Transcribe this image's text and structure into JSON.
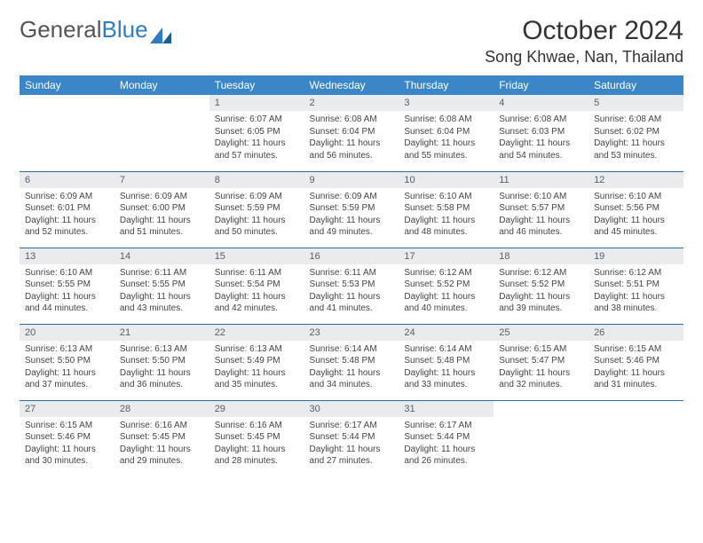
{
  "brand": {
    "name_a": "General",
    "name_b": "Blue"
  },
  "title": "October 2024",
  "location": "Song Khwae, Nan, Thailand",
  "colors": {
    "header_bg": "#3b86c6",
    "header_text": "#ffffff",
    "daynum_bg": "#e9ebec",
    "daynum_text": "#56606b",
    "body_text": "#444444",
    "rule": "#2f6aa0",
    "logo_blue": "#2f7cc0"
  },
  "weekdays": [
    "Sunday",
    "Monday",
    "Tuesday",
    "Wednesday",
    "Thursday",
    "Friday",
    "Saturday"
  ],
  "weeks": [
    [
      {
        "n": "",
        "empty": true
      },
      {
        "n": "",
        "empty": true
      },
      {
        "n": "1",
        "sr": "6:07 AM",
        "ss": "6:05 PM",
        "dl": "11 hours and 57 minutes."
      },
      {
        "n": "2",
        "sr": "6:08 AM",
        "ss": "6:04 PM",
        "dl": "11 hours and 56 minutes."
      },
      {
        "n": "3",
        "sr": "6:08 AM",
        "ss": "6:04 PM",
        "dl": "11 hours and 55 minutes."
      },
      {
        "n": "4",
        "sr": "6:08 AM",
        "ss": "6:03 PM",
        "dl": "11 hours and 54 minutes."
      },
      {
        "n": "5",
        "sr": "6:08 AM",
        "ss": "6:02 PM",
        "dl": "11 hours and 53 minutes."
      }
    ],
    [
      {
        "n": "6",
        "sr": "6:09 AM",
        "ss": "6:01 PM",
        "dl": "11 hours and 52 minutes."
      },
      {
        "n": "7",
        "sr": "6:09 AM",
        "ss": "6:00 PM",
        "dl": "11 hours and 51 minutes."
      },
      {
        "n": "8",
        "sr": "6:09 AM",
        "ss": "5:59 PM",
        "dl": "11 hours and 50 minutes."
      },
      {
        "n": "9",
        "sr": "6:09 AM",
        "ss": "5:59 PM",
        "dl": "11 hours and 49 minutes."
      },
      {
        "n": "10",
        "sr": "6:10 AM",
        "ss": "5:58 PM",
        "dl": "11 hours and 48 minutes."
      },
      {
        "n": "11",
        "sr": "6:10 AM",
        "ss": "5:57 PM",
        "dl": "11 hours and 46 minutes."
      },
      {
        "n": "12",
        "sr": "6:10 AM",
        "ss": "5:56 PM",
        "dl": "11 hours and 45 minutes."
      }
    ],
    [
      {
        "n": "13",
        "sr": "6:10 AM",
        "ss": "5:55 PM",
        "dl": "11 hours and 44 minutes."
      },
      {
        "n": "14",
        "sr": "6:11 AM",
        "ss": "5:55 PM",
        "dl": "11 hours and 43 minutes."
      },
      {
        "n": "15",
        "sr": "6:11 AM",
        "ss": "5:54 PM",
        "dl": "11 hours and 42 minutes."
      },
      {
        "n": "16",
        "sr": "6:11 AM",
        "ss": "5:53 PM",
        "dl": "11 hours and 41 minutes."
      },
      {
        "n": "17",
        "sr": "6:12 AM",
        "ss": "5:52 PM",
        "dl": "11 hours and 40 minutes."
      },
      {
        "n": "18",
        "sr": "6:12 AM",
        "ss": "5:52 PM",
        "dl": "11 hours and 39 minutes."
      },
      {
        "n": "19",
        "sr": "6:12 AM",
        "ss": "5:51 PM",
        "dl": "11 hours and 38 minutes."
      }
    ],
    [
      {
        "n": "20",
        "sr": "6:13 AM",
        "ss": "5:50 PM",
        "dl": "11 hours and 37 minutes."
      },
      {
        "n": "21",
        "sr": "6:13 AM",
        "ss": "5:50 PM",
        "dl": "11 hours and 36 minutes."
      },
      {
        "n": "22",
        "sr": "6:13 AM",
        "ss": "5:49 PM",
        "dl": "11 hours and 35 minutes."
      },
      {
        "n": "23",
        "sr": "6:14 AM",
        "ss": "5:48 PM",
        "dl": "11 hours and 34 minutes."
      },
      {
        "n": "24",
        "sr": "6:14 AM",
        "ss": "5:48 PM",
        "dl": "11 hours and 33 minutes."
      },
      {
        "n": "25",
        "sr": "6:15 AM",
        "ss": "5:47 PM",
        "dl": "11 hours and 32 minutes."
      },
      {
        "n": "26",
        "sr": "6:15 AM",
        "ss": "5:46 PM",
        "dl": "11 hours and 31 minutes."
      }
    ],
    [
      {
        "n": "27",
        "sr": "6:15 AM",
        "ss": "5:46 PM",
        "dl": "11 hours and 30 minutes."
      },
      {
        "n": "28",
        "sr": "6:16 AM",
        "ss": "5:45 PM",
        "dl": "11 hours and 29 minutes."
      },
      {
        "n": "29",
        "sr": "6:16 AM",
        "ss": "5:45 PM",
        "dl": "11 hours and 28 minutes."
      },
      {
        "n": "30",
        "sr": "6:17 AM",
        "ss": "5:44 PM",
        "dl": "11 hours and 27 minutes."
      },
      {
        "n": "31",
        "sr": "6:17 AM",
        "ss": "5:44 PM",
        "dl": "11 hours and 26 minutes."
      },
      {
        "n": "",
        "empty": true
      },
      {
        "n": "",
        "empty": true
      }
    ]
  ],
  "labels": {
    "sunrise": "Sunrise:",
    "sunset": "Sunset:",
    "daylight": "Daylight:"
  }
}
